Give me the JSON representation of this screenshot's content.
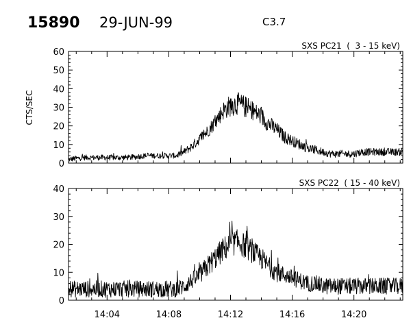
{
  "header": {
    "event_number": "15890",
    "date": "29-JUN-99",
    "flare_class": "C3.7"
  },
  "chart_data": [
    {
      "type": "line",
      "title": "SXS PC21  (  3 - 15 keV)",
      "ylabel": "CTS/SEC",
      "xlabel": "",
      "ylim": [
        0,
        60
      ],
      "y_ticks": [
        "0",
        "10",
        "20",
        "30",
        "40",
        "50",
        "60"
      ],
      "xlim": [
        "14:01:30",
        "14:23:10"
      ],
      "x_ticks": [
        "14:04",
        "14:08",
        "14:12",
        "14:16",
        "14:20"
      ],
      "series": [
        {
          "x": [
            "14:01:30",
            "14:02:30",
            "14:03:30",
            "14:04:30",
            "14:05:30",
            "14:06:30",
            "14:07:30",
            "14:08:30",
            "14:09:00",
            "14:09:30",
            "14:10:00",
            "14:10:30",
            "14:11:00",
            "14:11:30",
            "14:12:00",
            "14:12:30",
            "14:13:00",
            "14:13:30",
            "14:14:00",
            "14:14:30",
            "14:15:00",
            "14:15:30",
            "14:16:00",
            "14:16:30",
            "14:17:00",
            "14:17:30",
            "14:18:00",
            "14:18:30",
            "14:19:00",
            "14:19:30",
            "14:20:00",
            "14:20:30",
            "14:21:00",
            "14:21:30",
            "14:22:00",
            "14:22:30",
            "14:23:10"
          ],
          "values": [
            2,
            3,
            3,
            3,
            3,
            4,
            4,
            4,
            6,
            9,
            13,
            17,
            22,
            28,
            31,
            32,
            30,
            28,
            25,
            21,
            18,
            14,
            12,
            10,
            8,
            7,
            6,
            5,
            5,
            5,
            5,
            6,
            6,
            6,
            6,
            6,
            6
          ],
          "noise": [
            1.5,
            1.5,
            1.5,
            1.5,
            1.5,
            1.5,
            1.5,
            1.5,
            2,
            2.5,
            3,
            3.5,
            4,
            5,
            6,
            6,
            6,
            5,
            5,
            4.5,
            4,
            3.5,
            3,
            3,
            2.5,
            2.5,
            2,
            2,
            2,
            2,
            2,
            2,
            2,
            2,
            2,
            2,
            2
          ]
        }
      ]
    },
    {
      "type": "line",
      "title": "SXS PC22  ( 15 - 40 keV)",
      "ylabel": "",
      "xlabel": "",
      "ylim": [
        0,
        40
      ],
      "y_ticks": [
        "0",
        "10",
        "20",
        "30",
        "40"
      ],
      "xlim": [
        "14:01:30",
        "14:23:10"
      ],
      "x_ticks": [
        "14:04",
        "14:08",
        "14:12",
        "14:16",
        "14:20"
      ],
      "series": [
        {
          "x": [
            "14:01:30",
            "14:02:30",
            "14:03:30",
            "14:04:30",
            "14:05:30",
            "14:06:30",
            "14:07:30",
            "14:08:30",
            "14:09:00",
            "14:09:30",
            "14:10:00",
            "14:10:30",
            "14:11:00",
            "14:11:30",
            "14:12:00",
            "14:12:30",
            "14:13:00",
            "14:13:30",
            "14:14:00",
            "14:14:30",
            "14:15:00",
            "14:15:30",
            "14:16:00",
            "14:16:30",
            "14:17:00",
            "14:17:30",
            "14:18:00",
            "14:18:30",
            "14:19:00",
            "14:19:30",
            "14:20:00",
            "14:20:30",
            "14:21:00",
            "14:21:30",
            "14:22:00",
            "14:22:30",
            "14:23:10"
          ],
          "values": [
            4,
            4,
            4,
            4,
            4,
            4,
            4,
            4,
            5,
            7,
            9,
            12,
            15,
            18,
            20,
            21,
            19,
            17,
            15,
            12,
            10,
            9,
            8,
            7,
            6,
            6,
            5,
            5,
            5,
            5,
            5,
            5,
            5,
            5,
            5,
            5,
            5
          ],
          "noise": [
            3,
            3,
            3,
            3,
            3,
            3,
            3,
            3,
            3,
            3,
            3.5,
            4,
            4,
            4.5,
            4.5,
            4.5,
            4.5,
            4,
            4,
            3.5,
            3.5,
            3,
            3,
            3,
            3,
            3,
            3,
            3,
            3,
            3,
            3,
            3,
            3,
            3,
            3,
            3,
            3
          ]
        }
      ]
    }
  ]
}
